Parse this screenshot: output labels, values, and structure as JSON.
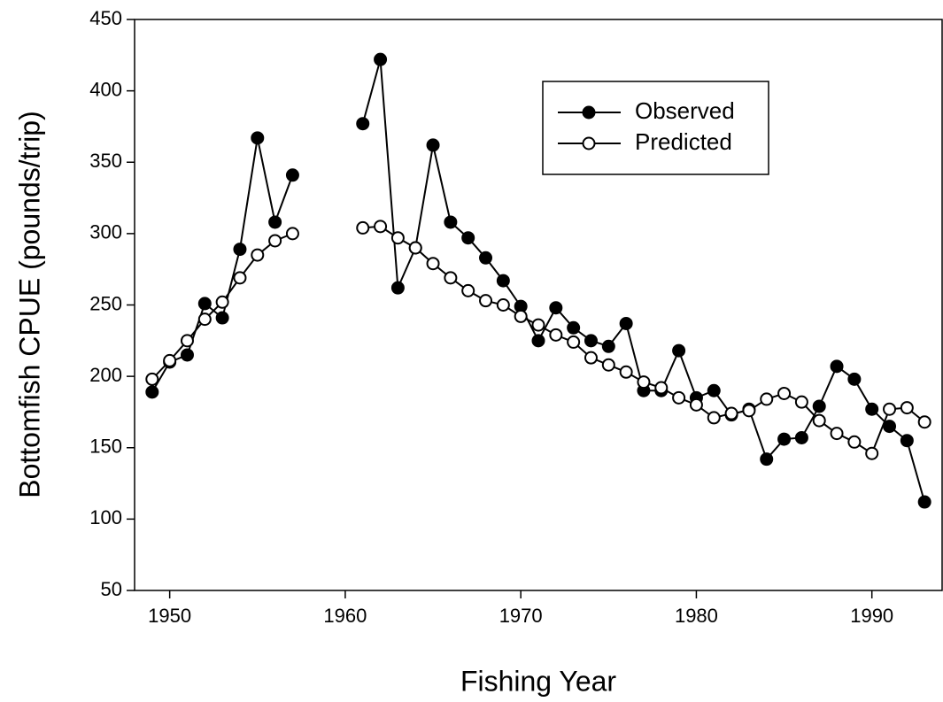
{
  "chart_data": {
    "type": "line",
    "x_label": "Fishing Year",
    "y_label": "Bottomfish CPUE (pounds/trip)",
    "x": [
      1949,
      1950,
      1951,
      1952,
      1953,
      1954,
      1955,
      1956,
      1957,
      1958,
      1959,
      1960,
      1961,
      1962,
      1963,
      1964,
      1965,
      1966,
      1967,
      1968,
      1969,
      1970,
      1971,
      1972,
      1973,
      1974,
      1975,
      1976,
      1977,
      1978,
      1979,
      1980,
      1981,
      1982,
      1983,
      1984,
      1985,
      1986,
      1987,
      1988,
      1989,
      1990,
      1991,
      1992,
      1993
    ],
    "series": [
      {
        "name": "Observed",
        "color": "#000000",
        "marker_fill": "#000000",
        "values": [
          189,
          210,
          215,
          251,
          241,
          289,
          367,
          308,
          341,
          null,
          null,
          null,
          377,
          422,
          262,
          290,
          362,
          308,
          297,
          283,
          267,
          249,
          225,
          248,
          234,
          225,
          221,
          237,
          190,
          190,
          218,
          185,
          190,
          173,
          177,
          142,
          156,
          157,
          179,
          207,
          198,
          177,
          165,
          155,
          112
        ]
      },
      {
        "name": "Predicted",
        "color": "#000000",
        "marker_fill": "#ffffff",
        "values": [
          198,
          211,
          225,
          240,
          252,
          269,
          285,
          295,
          300,
          null,
          null,
          null,
          304,
          305,
          297,
          290,
          279,
          269,
          260,
          253,
          250,
          242,
          236,
          229,
          224,
          213,
          208,
          203,
          196,
          192,
          185,
          180,
          171,
          174,
          176,
          184,
          188,
          182,
          169,
          160,
          154,
          146,
          177,
          178,
          168
        ]
      }
    ],
    "xlim": [
      1948,
      1994
    ],
    "xticks": [
      1950,
      1960,
      1970,
      1980,
      1990
    ],
    "ylim": [
      50,
      450
    ],
    "yticks": [
      50,
      100,
      150,
      200,
      250,
      300,
      350,
      400,
      450
    ],
    "legend": "upper-right"
  }
}
